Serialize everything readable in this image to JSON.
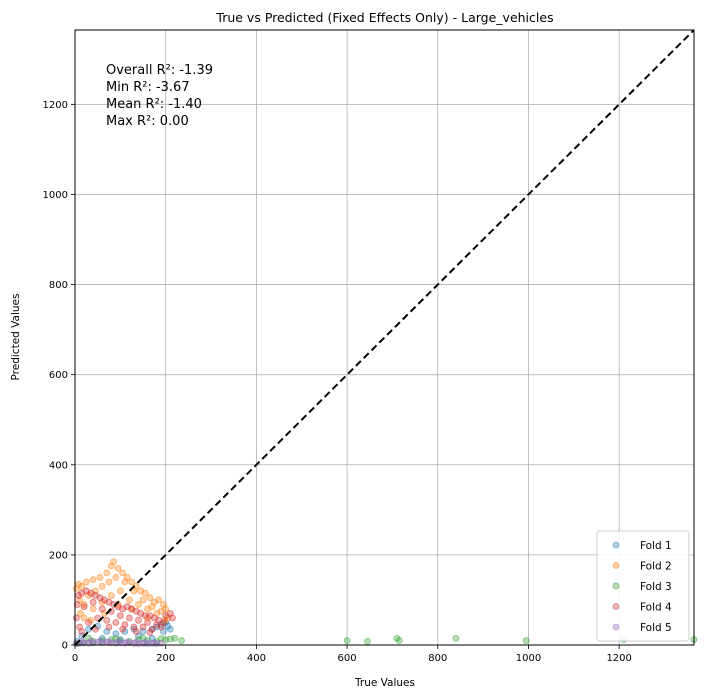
{
  "chart_data": {
    "type": "scatter",
    "title": "True vs Predicted (Fixed Effects Only) - Large_vehicles",
    "xlabel": "True Values",
    "ylabel": "Predicted Values",
    "xlim": [
      0,
      1365
    ],
    "ylim": [
      0,
      1365
    ],
    "xticks": [
      0,
      200,
      400,
      600,
      800,
      1000,
      1200
    ],
    "yticks": [
      0,
      200,
      400,
      600,
      800,
      1000,
      1200
    ],
    "grid": true,
    "legend_position": "lower-right",
    "reference_line": {
      "style": "dashed",
      "color": "#000000",
      "from": [
        0,
        0
      ],
      "to": [
        1365,
        1365
      ]
    },
    "stats": [
      "Overall R²: -1.39",
      "Min R²: -3.67",
      "Mean R²: -1.40",
      "Max R²: 0.00"
    ],
    "series": [
      {
        "name": "Fold 1",
        "color": "#1f77b4",
        "points": [
          [
            5,
            8
          ],
          [
            15,
            20
          ],
          [
            30,
            35
          ],
          [
            50,
            42
          ],
          [
            70,
            30
          ],
          [
            90,
            25
          ],
          [
            110,
            30
          ],
          [
            130,
            35
          ],
          [
            150,
            30
          ],
          [
            170,
            35
          ],
          [
            180,
            40
          ],
          [
            190,
            45
          ],
          [
            200,
            50
          ],
          [
            210,
            35
          ],
          [
            60,
            15
          ],
          [
            100,
            12
          ],
          [
            140,
            20
          ],
          [
            170,
            15
          ],
          [
            195,
            30
          ],
          [
            205,
            42
          ]
        ]
      },
      {
        "name": "Fold 2",
        "color": "#ff7f0e",
        "points": [
          [
            3,
            125
          ],
          [
            8,
            135
          ],
          [
            15,
            130
          ],
          [
            25,
            140
          ],
          [
            40,
            145
          ],
          [
            55,
            150
          ],
          [
            70,
            160
          ],
          [
            80,
            175
          ],
          [
            85,
            185
          ],
          [
            95,
            170
          ],
          [
            105,
            160
          ],
          [
            115,
            150
          ],
          [
            125,
            140
          ],
          [
            135,
            130
          ],
          [
            145,
            120
          ],
          [
            155,
            115
          ],
          [
            165,
            105
          ],
          [
            175,
            95
          ],
          [
            185,
            100
          ],
          [
            195,
            90
          ],
          [
            10,
            100
          ],
          [
            20,
            90
          ],
          [
            30,
            110
          ],
          [
            45,
            120
          ],
          [
            60,
            130
          ],
          [
            75,
            140
          ],
          [
            90,
            150
          ],
          [
            110,
            140
          ],
          [
            130,
            120
          ],
          [
            150,
            100
          ],
          [
            170,
            85
          ],
          [
            190,
            75
          ],
          [
            200,
            80
          ],
          [
            205,
            60
          ],
          [
            20,
            60
          ],
          [
            40,
            80
          ],
          [
            60,
            95
          ],
          [
            80,
            110
          ],
          [
            100,
            120
          ],
          [
            120,
            100
          ],
          [
            140,
            90
          ],
          [
            160,
            80
          ],
          [
            180,
            70
          ],
          [
            12,
            70
          ],
          [
            35,
            55
          ],
          [
            65,
            70
          ],
          [
            95,
            90
          ],
          [
            125,
            80
          ],
          [
            160,
            60
          ],
          [
            198,
            55
          ]
        ]
      },
      {
        "name": "Fold 3",
        "color": "#2ca02c",
        "points": [
          [
            5,
            3
          ],
          [
            20,
            5
          ],
          [
            40,
            8
          ],
          [
            60,
            10
          ],
          [
            80,
            12
          ],
          [
            100,
            10
          ],
          [
            120,
            8
          ],
          [
            140,
            12
          ],
          [
            160,
            10
          ],
          [
            180,
            8
          ],
          [
            200,
            12
          ],
          [
            220,
            15
          ],
          [
            235,
            10
          ],
          [
            600,
            10
          ],
          [
            645,
            8
          ],
          [
            710,
            15
          ],
          [
            715,
            10
          ],
          [
            840,
            15
          ],
          [
            995,
            10
          ],
          [
            1210,
            12
          ],
          [
            1365,
            12
          ],
          [
            30,
            15
          ],
          [
            90,
            14
          ],
          [
            150,
            15
          ],
          [
            190,
            14
          ],
          [
            210,
            13
          ]
        ]
      },
      {
        "name": "Fold 4",
        "color": "#d62728",
        "points": [
          [
            3,
            60
          ],
          [
            5,
            90
          ],
          [
            8,
            110
          ],
          [
            15,
            115
          ],
          [
            25,
            120
          ],
          [
            35,
            115
          ],
          [
            45,
            110
          ],
          [
            55,
            105
          ],
          [
            65,
            100
          ],
          [
            75,
            95
          ],
          [
            85,
            90
          ],
          [
            95,
            85
          ],
          [
            105,
            80
          ],
          [
            115,
            85
          ],
          [
            125,
            80
          ],
          [
            135,
            75
          ],
          [
            145,
            70
          ],
          [
            155,
            65
          ],
          [
            165,
            65
          ],
          [
            175,
            60
          ],
          [
            185,
            55
          ],
          [
            195,
            50
          ],
          [
            200,
            65
          ],
          [
            210,
            70
          ],
          [
            215,
            60
          ],
          [
            20,
            85
          ],
          [
            40,
            95
          ],
          [
            60,
            80
          ],
          [
            80,
            75
          ],
          [
            100,
            65
          ],
          [
            120,
            60
          ],
          [
            140,
            55
          ],
          [
            160,
            50
          ],
          [
            180,
            45
          ],
          [
            10,
            40
          ],
          [
            30,
            50
          ],
          [
            50,
            60
          ],
          [
            70,
            55
          ],
          [
            90,
            50
          ],
          [
            110,
            45
          ],
          [
            130,
            40
          ],
          [
            150,
            40
          ],
          [
            170,
            35
          ],
          [
            190,
            40
          ],
          [
            15,
            30
          ],
          [
            45,
            35
          ],
          [
            75,
            40
          ],
          [
            105,
            35
          ],
          [
            135,
            30
          ],
          [
            165,
            28
          ]
        ]
      },
      {
        "name": "Fold 5",
        "color": "#9467bd",
        "points": [
          [
            2,
            3
          ],
          [
            10,
            4
          ],
          [
            20,
            5
          ],
          [
            30,
            4
          ],
          [
            40,
            5
          ],
          [
            50,
            6
          ],
          [
            60,
            5
          ],
          [
            70,
            6
          ],
          [
            80,
            5
          ],
          [
            90,
            4
          ],
          [
            100,
            5
          ],
          [
            110,
            4
          ],
          [
            120,
            5
          ],
          [
            130,
            4
          ],
          [
            140,
            3
          ],
          [
            150,
            4
          ],
          [
            160,
            3
          ],
          [
            170,
            4
          ],
          [
            180,
            3
          ],
          [
            190,
            4
          ],
          [
            15,
            8
          ],
          [
            35,
            9
          ],
          [
            55,
            8
          ],
          [
            75,
            7
          ],
          [
            95,
            8
          ],
          [
            115,
            7
          ],
          [
            135,
            6
          ],
          [
            155,
            6
          ],
          [
            175,
            5
          ]
        ]
      }
    ]
  }
}
